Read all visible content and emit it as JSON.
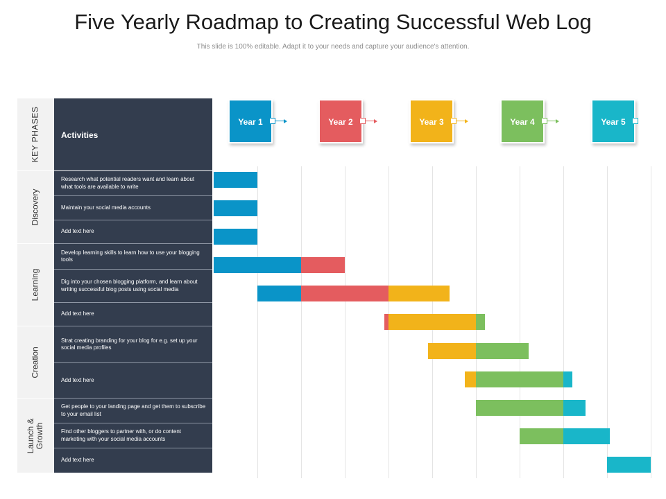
{
  "title": "Five Yearly Roadmap to Creating Successful Web Log",
  "subtitle": "This slide is 100% editable. Adapt it to your needs and capture your audience's attention.",
  "header": {
    "key_phases": "KEY PHASES",
    "activities": "Activities"
  },
  "colors": {
    "year1": "#0a94c8",
    "year2": "#e45c5f",
    "year3": "#f2b31a",
    "year4": "#7cbf5e",
    "year5": "#19b6c9",
    "panel": "#333d4e",
    "phase_bg": "#f2f2f2"
  },
  "years": [
    {
      "label": "Year 1",
      "color": "#0a94c8"
    },
    {
      "label": "Year 2",
      "color": "#e45c5f"
    },
    {
      "label": "Year 3",
      "color": "#f2b31a"
    },
    {
      "label": "Year 4",
      "color": "#7cbf5e"
    },
    {
      "label": "Year 5",
      "color": "#19b6c9"
    }
  ],
  "phases": [
    {
      "label": "Discovery"
    },
    {
      "label": "Learning"
    },
    {
      "label": "Creation"
    },
    {
      "label": "Launch &\nGrowth"
    }
  ],
  "activities": [
    {
      "text": "Research what potential readers want and learn about what tools are available to write"
    },
    {
      "text": "Maintain your social media accounts"
    },
    {
      "text": "Add text here"
    },
    {
      "text": "Develop learning skills to learn how to use your blogging tools"
    },
    {
      "text": "Dig into your chosen blogging platform, and learn about writing successful blog posts using social media"
    },
    {
      "text": "Add text here"
    },
    {
      "text": "Strat creating branding for your blog for e.g. set up your social media profiles"
    },
    {
      "text": "Add text here"
    },
    {
      "text": "Get people to your landing page and get them to subscribe to your email list"
    },
    {
      "text": "Find other bloggers to partner with, or do content marketing with your social media accounts"
    },
    {
      "text": "Add text here"
    }
  ],
  "chart_data": {
    "type": "gantt",
    "periods": [
      "Year 1",
      "Year 2",
      "Year 3",
      "Year 4",
      "Year 5"
    ],
    "period_colors": [
      "#0a94c8",
      "#e45c5f",
      "#f2b31a",
      "#7cbf5e",
      "#19b6c9"
    ],
    "bars": [
      {
        "row": 0,
        "start": 0.0,
        "end": 0.5
      },
      {
        "row": 1,
        "start": 0.0,
        "end": 0.5
      },
      {
        "row": 2,
        "start": 0.0,
        "end": 0.5
      },
      {
        "row": 3,
        "start": 0.0,
        "end": 1.5
      },
      {
        "row": 4,
        "start": 0.5,
        "end": 2.7
      },
      {
        "row": 5,
        "start": 1.95,
        "end": 3.1
      },
      {
        "row": 6,
        "start": 2.45,
        "end": 3.6
      },
      {
        "row": 7,
        "start": 2.87,
        "end": 4.1
      },
      {
        "row": 8,
        "start": 3.0,
        "end": 4.25
      },
      {
        "row": 9,
        "start": 3.5,
        "end": 4.53
      },
      {
        "row": 10,
        "start": 4.5,
        "end": 5.0
      }
    ]
  }
}
